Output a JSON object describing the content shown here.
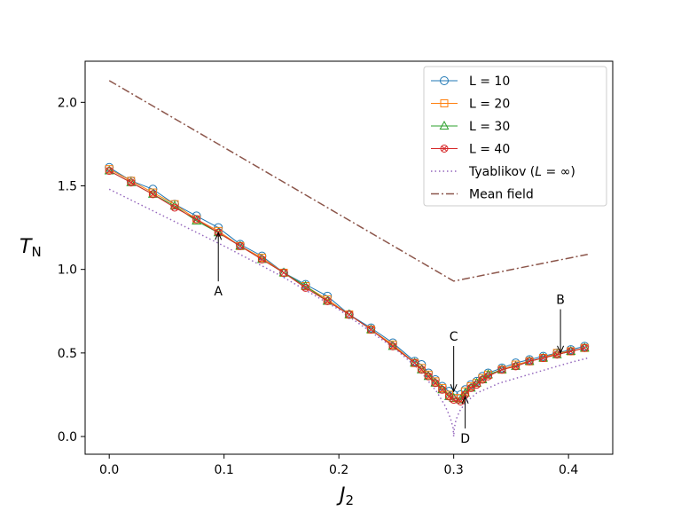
{
  "chart_data": {
    "type": "line",
    "xlabel_main": "J",
    "xlabel_sub": "2",
    "ylabel_main": "T",
    "ylabel_sub": "N",
    "xlim": [
      -0.021,
      0.4385
    ],
    "ylim": [
      -0.106,
      2.246
    ],
    "xticks": [
      0.0,
      0.1,
      0.2,
      0.3,
      0.4
    ],
    "xtick_labels": [
      "0.0",
      "0.1",
      "0.2",
      "0.3",
      "0.4"
    ],
    "yticks": [
      0.0,
      0.5,
      1.0,
      1.5,
      2.0
    ],
    "ytick_labels": [
      "0.0",
      "0.5",
      "1.0",
      "1.5",
      "2.0"
    ],
    "legend_position": "top-right",
    "series": [
      {
        "name": "L = 10",
        "color": "#1f77b4",
        "marker": "circle",
        "x": [
          0.0,
          0.019,
          0.038,
          0.057,
          0.076,
          0.095,
          0.114,
          0.133,
          0.152,
          0.171,
          0.19,
          0.209,
          0.228,
          0.247,
          0.266,
          0.272,
          0.278,
          0.284,
          0.29,
          0.296,
          0.3,
          0.306,
          0.31,
          0.315,
          0.32,
          0.325,
          0.33,
          0.342,
          0.354,
          0.366,
          0.378,
          0.39,
          0.402,
          0.414
        ],
        "y": [
          1.61,
          1.53,
          1.48,
          1.39,
          1.32,
          1.25,
          1.15,
          1.08,
          0.98,
          0.91,
          0.84,
          0.73,
          0.65,
          0.56,
          0.45,
          0.43,
          0.38,
          0.34,
          0.3,
          0.27,
          0.25,
          0.25,
          0.28,
          0.31,
          0.33,
          0.36,
          0.38,
          0.41,
          0.44,
          0.46,
          0.48,
          0.5,
          0.52,
          0.54
        ]
      },
      {
        "name": "L = 20",
        "color": "#ff7f0e",
        "marker": "square",
        "x": [
          0.0,
          0.019,
          0.038,
          0.057,
          0.076,
          0.095,
          0.114,
          0.133,
          0.152,
          0.171,
          0.19,
          0.209,
          0.228,
          0.247,
          0.266,
          0.272,
          0.278,
          0.284,
          0.29,
          0.296,
          0.3,
          0.306,
          0.31,
          0.315,
          0.32,
          0.325,
          0.33,
          0.342,
          0.354,
          0.366,
          0.378,
          0.39,
          0.402,
          0.414
        ],
        "y": [
          1.6,
          1.53,
          1.46,
          1.39,
          1.3,
          1.23,
          1.14,
          1.07,
          0.98,
          0.9,
          0.82,
          0.73,
          0.64,
          0.55,
          0.44,
          0.41,
          0.37,
          0.33,
          0.29,
          0.25,
          0.23,
          0.23,
          0.27,
          0.3,
          0.32,
          0.35,
          0.37,
          0.4,
          0.43,
          0.45,
          0.47,
          0.5,
          0.51,
          0.53
        ]
      },
      {
        "name": "L = 30",
        "color": "#2ca02c",
        "marker": "triangle",
        "x": [
          0.0,
          0.019,
          0.038,
          0.057,
          0.076,
          0.095,
          0.114,
          0.133,
          0.152,
          0.171,
          0.19,
          0.209,
          0.228,
          0.247,
          0.266,
          0.272,
          0.278,
          0.284,
          0.29,
          0.296,
          0.3,
          0.306,
          0.31,
          0.315,
          0.32,
          0.325,
          0.33,
          0.342,
          0.354,
          0.366,
          0.378,
          0.39,
          0.402,
          0.414
        ],
        "y": [
          1.59,
          1.52,
          1.45,
          1.38,
          1.29,
          1.22,
          1.14,
          1.06,
          0.98,
          0.9,
          0.81,
          0.73,
          0.64,
          0.54,
          0.44,
          0.4,
          0.36,
          0.32,
          0.28,
          0.24,
          0.23,
          0.22,
          0.26,
          0.29,
          0.32,
          0.34,
          0.37,
          0.4,
          0.42,
          0.45,
          0.47,
          0.49,
          0.51,
          0.53
        ]
      },
      {
        "name": "L = 40",
        "color": "#d62728",
        "marker": "x-circle",
        "x": [
          0.0,
          0.019,
          0.038,
          0.057,
          0.076,
          0.095,
          0.114,
          0.133,
          0.152,
          0.171,
          0.19,
          0.209,
          0.228,
          0.247,
          0.266,
          0.272,
          0.278,
          0.284,
          0.29,
          0.296,
          0.3,
          0.306,
          0.31,
          0.315,
          0.32,
          0.325,
          0.33,
          0.342,
          0.354,
          0.366,
          0.378,
          0.39,
          0.402,
          0.414
        ],
        "y": [
          1.59,
          1.52,
          1.45,
          1.37,
          1.3,
          1.22,
          1.14,
          1.06,
          0.98,
          0.89,
          0.81,
          0.73,
          0.64,
          0.54,
          0.44,
          0.4,
          0.36,
          0.32,
          0.28,
          0.24,
          0.22,
          0.21,
          0.25,
          0.29,
          0.31,
          0.34,
          0.36,
          0.4,
          0.42,
          0.45,
          0.47,
          0.49,
          0.51,
          0.53
        ]
      }
    ],
    "tyablikov": {
      "name_prefix": "Tyablikov (",
      "name_italic": "L",
      "name_suffix": " = ∞)",
      "color": "#9467bd",
      "style": "dotted",
      "x": [
        0.0,
        0.05,
        0.1,
        0.15,
        0.2,
        0.25,
        0.27,
        0.285,
        0.292,
        0.296,
        0.298,
        0.2995,
        0.3,
        0.3005,
        0.302,
        0.305,
        0.31,
        0.32,
        0.34,
        0.37,
        0.4,
        0.417
      ],
      "y": [
        1.48,
        1.31,
        1.14,
        0.96,
        0.76,
        0.52,
        0.4,
        0.27,
        0.19,
        0.13,
        0.09,
        0.05,
        0.0,
        0.05,
        0.1,
        0.15,
        0.2,
        0.26,
        0.32,
        0.38,
        0.44,
        0.47
      ]
    },
    "mean_field": {
      "name": "Mean field",
      "color": "#8c564b",
      "style": "dashdot",
      "x": [
        0.0,
        0.3,
        0.4167
      ],
      "y": [
        2.13,
        0.93,
        1.09
      ]
    },
    "annotations": [
      {
        "label": "A",
        "text_x": 0.095,
        "text_y": 0.87,
        "arrow_x": 0.095,
        "arrow_y": 1.22
      },
      {
        "label": "B",
        "text_x": 0.393,
        "text_y": 0.82,
        "arrow_x": 0.393,
        "arrow_y": 0.5
      },
      {
        "label": "C",
        "text_x": 0.3,
        "text_y": 0.6,
        "arrow_x": 0.3,
        "arrow_y": 0.27
      },
      {
        "label": "D",
        "text_x": 0.31,
        "text_y": -0.01,
        "arrow_x": 0.31,
        "arrow_y": 0.24
      }
    ]
  }
}
